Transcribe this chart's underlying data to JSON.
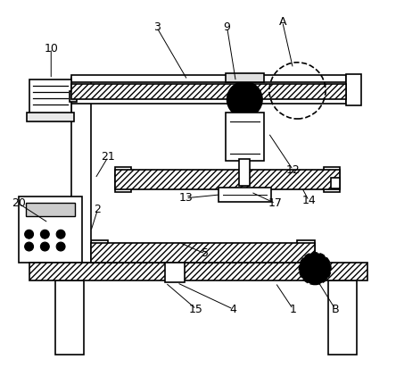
{
  "bg_color": "#ffffff",
  "line_color": "#000000",
  "figsize": [
    4.44,
    4.12
  ],
  "dpi": 100
}
